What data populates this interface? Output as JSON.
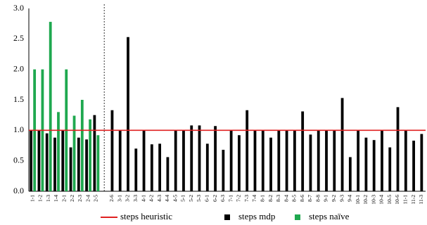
{
  "chart_data": {
    "type": "bar",
    "categories": [
      "1-1",
      "1-2",
      "1-3",
      "1-4",
      "2-1",
      "2-2",
      "2-3",
      "2-4",
      "2-5",
      null,
      "2-6",
      "3-1",
      "3-2",
      "3-3",
      "4-1",
      "4-2",
      "4-3",
      "4-4",
      "4-5",
      "5-1",
      "5-2",
      "5-3",
      "6-1",
      "6-2",
      "6-3",
      "7-1",
      "7-2",
      "7-3",
      "7-4",
      "8-1",
      "8-2",
      "8-3",
      "8-4",
      "8-5",
      "8-6",
      "8-7",
      "8-8",
      "9-1",
      "9-2",
      "9-3",
      "9-4",
      "10-1",
      "10-2",
      "10-3",
      "10-4",
      "10-5",
      "10-6",
      "11-1",
      "11-2",
      "11-3"
    ],
    "series": [
      {
        "name": "steps heuristic",
        "type": "line",
        "color": "#e02020",
        "values": [
          1,
          1,
          1,
          1,
          1,
          1,
          1,
          1,
          1,
          1,
          1,
          1,
          1,
          1,
          1,
          1,
          1,
          1,
          1,
          1,
          1,
          1,
          1,
          1,
          1,
          1,
          1,
          1,
          1,
          1,
          1,
          1,
          1,
          1,
          1,
          1,
          1,
          1,
          1,
          1,
          1,
          1,
          1,
          1,
          1,
          1,
          1,
          1,
          1,
          1
        ]
      },
      {
        "name": "steps mdp",
        "type": "bar",
        "color": "#000000",
        "values": [
          1.0,
          1.0,
          0.95,
          0.88,
          1.0,
          0.72,
          0.88,
          0.85,
          1.25,
          null,
          1.33,
          1.0,
          2.53,
          0.7,
          1.0,
          0.77,
          0.78,
          0.56,
          1.0,
          1.0,
          1.08,
          1.08,
          0.78,
          1.07,
          0.68,
          1.0,
          0.92,
          1.33,
          1.0,
          1.0,
          0.88,
          1.0,
          1.0,
          1.0,
          1.31,
          0.93,
          1.0,
          1.0,
          1.0,
          1.53,
          0.56,
          1.0,
          0.88,
          0.84,
          1.0,
          0.72,
          1.38,
          1.0,
          0.83,
          0.94
        ]
      },
      {
        "name": "steps naïve",
        "type": "bar",
        "color": "#1fa84f",
        "values": [
          2.0,
          2.0,
          2.78,
          1.3,
          2.0,
          1.24,
          1.5,
          1.18,
          0.92,
          null,
          null,
          null,
          null,
          null,
          null,
          null,
          null,
          null,
          null,
          null,
          null,
          null,
          null,
          null,
          null,
          null,
          null,
          null,
          null,
          null,
          null,
          null,
          null,
          null,
          null,
          null,
          null,
          null,
          null,
          null,
          null,
          null,
          null,
          null,
          null,
          null,
          null,
          null,
          null,
          null
        ]
      }
    ],
    "ylim": [
      0,
      3.0
    ],
    "yticks": [
      {
        "value": 0,
        "label": "0.0"
      },
      {
        "value": 0.5,
        "label": "0.5"
      },
      {
        "value": 1.0,
        "label": "1.0"
      },
      {
        "value": 1.5,
        "label": "1.5"
      },
      {
        "value": 2.0,
        "label": "2.0"
      },
      {
        "value": 2.5,
        "label": "2.5"
      },
      {
        "value": 3.0,
        "label": "3.0"
      }
    ],
    "legend": "bottom"
  }
}
